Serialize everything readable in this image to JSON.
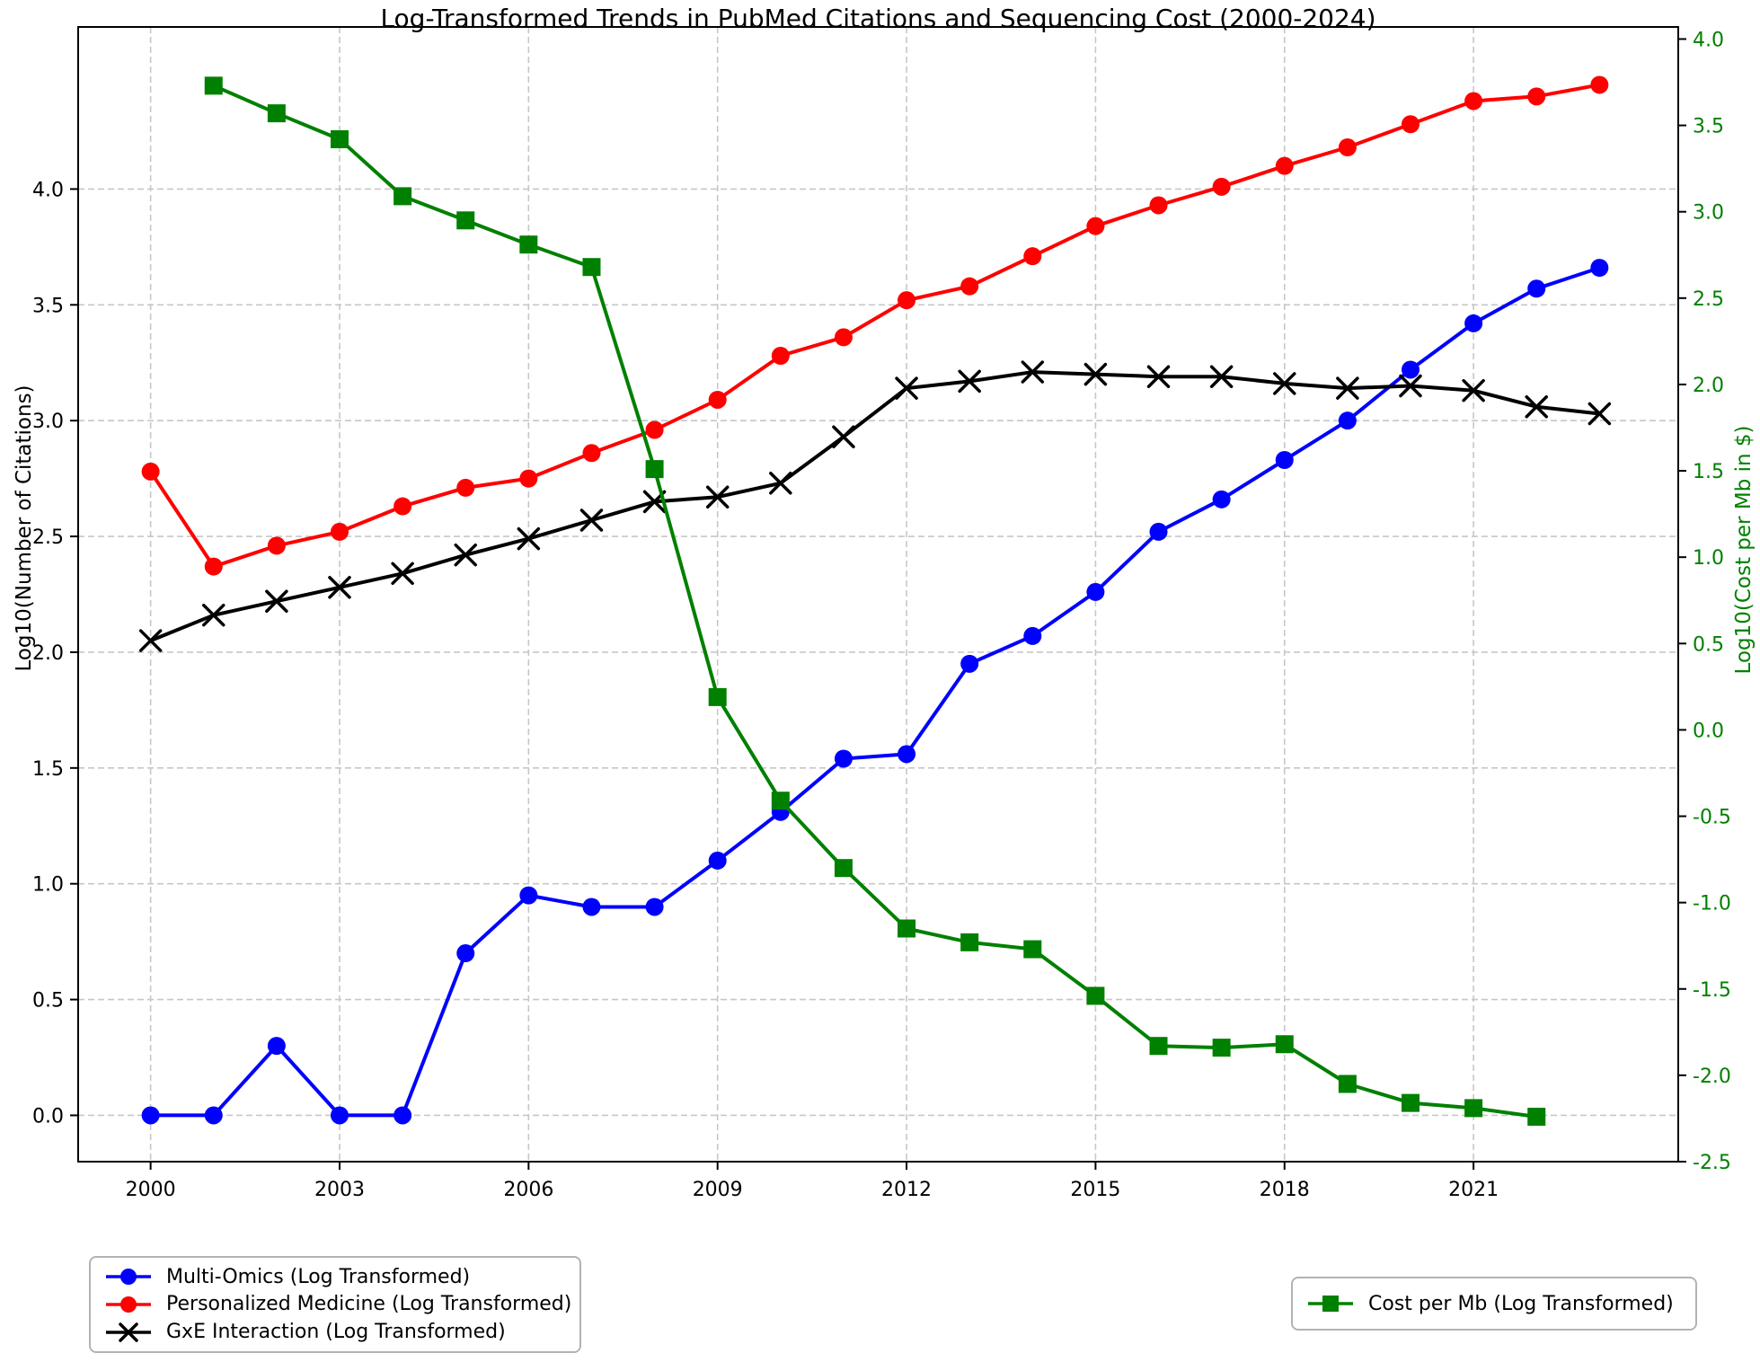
{
  "chart_data": {
    "type": "line",
    "title": "Log-Transformed Trends in PubMed Citations and Sequencing Cost (2000-2024)",
    "x": {
      "ticks": [
        2000,
        2003,
        2006,
        2009,
        2012,
        2015,
        2018,
        2021
      ],
      "range": [
        1998.85,
        2024.25
      ]
    },
    "left_axis": {
      "label": "Log10(Number of Citations)",
      "ticks": [
        0.0,
        0.5,
        1.0,
        1.5,
        2.0,
        2.5,
        3.0,
        3.5,
        4.0
      ],
      "range": [
        -0.2,
        4.7
      ],
      "color": "#000000"
    },
    "right_axis": {
      "label": "Log10(Cost per Mb in $)",
      "ticks": [
        4.0,
        3.5,
        3.0,
        2.5,
        2.0,
        1.5,
        1.0,
        0.5,
        0.0,
        -0.5,
        -1.0,
        -1.5,
        -2.0,
        -2.5
      ],
      "range": [
        -2.5,
        4.07
      ],
      "color": "#008000"
    },
    "grid": true,
    "legend_positions": [
      "lower-left",
      "lower-right"
    ],
    "series": [
      {
        "name": "Multi-Omics (Log Transformed)",
        "axis": "left",
        "color": "#0000ff",
        "marker": "circle",
        "x": [
          2000,
          2001,
          2002,
          2003,
          2004,
          2005,
          2006,
          2007,
          2008,
          2009,
          2010,
          2011,
          2012,
          2013,
          2014,
          2015,
          2016,
          2017,
          2018,
          2019,
          2020,
          2021,
          2022,
          2023
        ],
        "y": [
          0.0,
          0.0,
          0.3,
          0.0,
          0.0,
          0.7,
          0.95,
          0.9,
          0.9,
          1.1,
          1.31,
          1.54,
          1.56,
          1.95,
          2.07,
          2.26,
          2.52,
          2.66,
          2.83,
          3.0,
          3.22,
          3.42,
          3.57,
          3.66
        ]
      },
      {
        "name": "Personalized Medicine (Log Transformed)",
        "axis": "left",
        "color": "#ff0000",
        "marker": "circle",
        "x": [
          2000,
          2001,
          2002,
          2003,
          2004,
          2005,
          2006,
          2007,
          2008,
          2009,
          2010,
          2011,
          2012,
          2013,
          2014,
          2015,
          2016,
          2017,
          2018,
          2019,
          2020,
          2021,
          2022,
          2023
        ],
        "y": [
          2.78,
          2.37,
          2.46,
          2.52,
          2.63,
          2.71,
          2.75,
          2.86,
          2.96,
          3.09,
          3.28,
          3.36,
          3.52,
          3.58,
          3.71,
          3.84,
          3.93,
          4.01,
          4.1,
          4.18,
          4.28,
          4.38,
          4.4,
          4.45
        ]
      },
      {
        "name": "GxE Interaction (Log Transformed)",
        "axis": "left",
        "color": "#000000",
        "marker": "x",
        "x": [
          2000,
          2001,
          2002,
          2003,
          2004,
          2005,
          2006,
          2007,
          2008,
          2009,
          2010,
          2011,
          2012,
          2013,
          2014,
          2015,
          2016,
          2017,
          2018,
          2019,
          2020,
          2021,
          2022,
          2023
        ],
        "y": [
          2.05,
          2.16,
          2.22,
          2.28,
          2.34,
          2.42,
          2.49,
          2.57,
          2.65,
          2.67,
          2.73,
          2.93,
          3.14,
          3.17,
          3.21,
          3.2,
          3.19,
          3.19,
          3.16,
          3.14,
          3.15,
          3.13,
          3.06,
          3.03
        ]
      },
      {
        "name": "Cost per Mb (Log Transformed)",
        "axis": "right",
        "color": "#008000",
        "marker": "square",
        "x": [
          2001,
          2002,
          2003,
          2004,
          2005,
          2006,
          2007,
          2008,
          2009,
          2010,
          2011,
          2012,
          2013,
          2014,
          2015,
          2016,
          2017,
          2018,
          2019,
          2020,
          2021,
          2022
        ],
        "y": [
          3.73,
          3.57,
          3.42,
          3.09,
          2.95,
          2.81,
          2.68,
          1.51,
          0.19,
          -0.41,
          -0.8,
          -1.15,
          -1.23,
          -1.27,
          -1.54,
          -1.83,
          -1.84,
          -1.82,
          -2.05,
          -2.16,
          -2.19,
          -2.24
        ]
      }
    ]
  },
  "colors": {
    "grid": "#c7c7c7",
    "spine": "#000000",
    "background": "#ffffff",
    "legend_border": "#b3b3b3"
  }
}
